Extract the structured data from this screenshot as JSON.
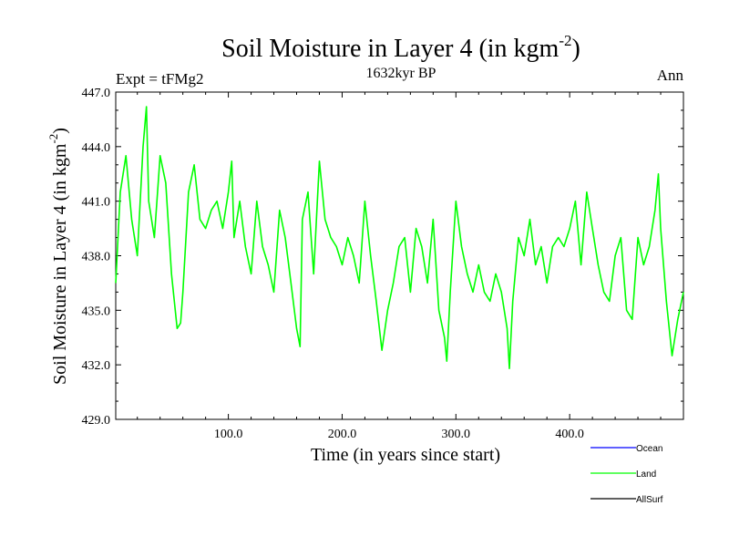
{
  "chart_data": {
    "type": "line",
    "title_main": "Soil Moisture in Layer 4 (in kgm",
    "title_sup": "-2",
    "title_close": ")",
    "subtitle": "1632kyr BP",
    "left_label": "Expt = tFMg2",
    "right_label": "Ann",
    "xlabel": "Time (in years since start)",
    "ylabel_main": "Soil Moisture in Layer 4 (in kgm",
    "ylabel_sup": "-2",
    "ylabel_close": ")",
    "xlim": [
      1,
      500
    ],
    "ylim": [
      429,
      447
    ],
    "x_ticks": [
      100,
      200,
      300,
      400
    ],
    "x_tick_labels": [
      "100.0",
      "200.0",
      "300.0",
      "400.0"
    ],
    "y_ticks": [
      429,
      432,
      435,
      438,
      441,
      444,
      447
    ],
    "y_tick_labels": [
      "429.0",
      "432.0",
      "435.0",
      "438.0",
      "441.0",
      "444.0",
      "447.0"
    ],
    "legend": [
      {
        "name": "Ocean",
        "color": "#0000ff"
      },
      {
        "name": "Land",
        "color": "#00ff00"
      },
      {
        "name": "AllSurf",
        "color": "#000000"
      }
    ],
    "series": [
      {
        "name": "Land",
        "color": "#00ff00",
        "x": [
          1,
          5,
          10,
          15,
          20,
          25,
          28,
          30,
          35,
          40,
          45,
          50,
          55,
          58,
          60,
          65,
          70,
          75,
          80,
          85,
          90,
          95,
          100,
          103,
          105,
          110,
          115,
          120,
          125,
          130,
          135,
          140,
          145,
          150,
          155,
          160,
          163,
          165,
          170,
          175,
          180,
          185,
          190,
          195,
          200,
          205,
          210,
          215,
          220,
          225,
          230,
          235,
          240,
          245,
          250,
          255,
          260,
          265,
          270,
          275,
          280,
          285,
          290,
          292,
          295,
          300,
          305,
          310,
          315,
          320,
          325,
          330,
          335,
          340,
          345,
          347,
          350,
          355,
          360,
          365,
          370,
          375,
          380,
          385,
          390,
          395,
          400,
          405,
          410,
          415,
          420,
          425,
          430,
          435,
          440,
          445,
          450,
          455,
          460,
          465,
          470,
          475,
          478,
          480,
          485,
          490,
          495,
          500
        ],
        "y": [
          436.5,
          441.5,
          443.5,
          440.0,
          438.0,
          444.0,
          446.2,
          441.0,
          439.0,
          443.5,
          442.0,
          437.0,
          434.0,
          434.3,
          436.0,
          441.5,
          443.0,
          440.0,
          439.5,
          440.5,
          441.0,
          439.5,
          441.5,
          443.2,
          439.0,
          441.0,
          438.5,
          437.0,
          441.0,
          438.5,
          437.5,
          436.0,
          440.5,
          439.0,
          436.5,
          434.0,
          433.0,
          440.0,
          441.5,
          437.0,
          443.2,
          440.0,
          439.0,
          438.5,
          437.5,
          439.0,
          438.0,
          436.5,
          441.0,
          438.0,
          435.5,
          432.8,
          435.0,
          436.5,
          438.5,
          439.0,
          436.0,
          439.5,
          438.5,
          436.5,
          440.0,
          435.0,
          433.5,
          432.2,
          436.0,
          441.0,
          438.5,
          437.0,
          436.0,
          437.5,
          436.0,
          435.5,
          437.0,
          436.0,
          434.0,
          431.8,
          435.5,
          439.0,
          438.0,
          440.0,
          437.5,
          438.5,
          436.5,
          438.5,
          439.0,
          438.5,
          439.5,
          441.0,
          437.5,
          441.5,
          439.5,
          437.5,
          436.0,
          435.5,
          438.0,
          439.0,
          435.0,
          434.5,
          439.0,
          437.5,
          438.5,
          440.5,
          442.5,
          439.5,
          435.5,
          432.5,
          434.5,
          436.0
        ]
      }
    ]
  }
}
